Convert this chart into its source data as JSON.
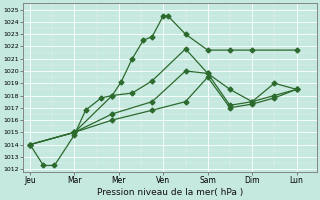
{
  "xlabel": "Pression niveau de la mer( hPa )",
  "background_color": "#c5e8df",
  "grid_color": "#ffffff",
  "line_color": "#2d6a2d",
  "ylim": [
    1012,
    1025.5
  ],
  "y_min": 1012,
  "y_max": 1025,
  "x_labels": [
    "Jeu",
    "Mar",
    "Mer",
    "Ven",
    "Sam",
    "Dim",
    "Lun"
  ],
  "x_positions": [
    0,
    1,
    2,
    3,
    4,
    5,
    6
  ],
  "line1_x": [
    0.0,
    0.3,
    0.55,
    1.0,
    1.25,
    1.6,
    1.85,
    2.05,
    2.3,
    2.55,
    2.75,
    3.0,
    3.1,
    3.5,
    4.0,
    4.5,
    5.0,
    6.0
  ],
  "line1_y": [
    1014.0,
    1012.3,
    1012.3,
    1014.8,
    1016.8,
    1017.8,
    1018.0,
    1019.1,
    1021.0,
    1022.5,
    1022.8,
    1024.5,
    1024.5,
    1023.0,
    1021.7,
    1021.7,
    1021.7,
    1021.7
  ],
  "line2_x": [
    0.0,
    1.0,
    1.85,
    2.3,
    2.75,
    3.5,
    4.0,
    4.5,
    5.0,
    5.5,
    6.0
  ],
  "line2_y": [
    1014.0,
    1015.0,
    1018.0,
    1018.2,
    1019.2,
    1021.8,
    1019.8,
    1017.2,
    1017.5,
    1019.0,
    1018.5
  ],
  "line3_x": [
    0.0,
    1.0,
    1.85,
    2.75,
    3.5,
    4.0,
    4.5,
    5.0,
    5.5,
    6.0
  ],
  "line3_y": [
    1014.0,
    1015.0,
    1016.5,
    1017.5,
    1020.0,
    1019.8,
    1018.5,
    1017.5,
    1018.0,
    1018.5
  ],
  "line4_x": [
    0.0,
    1.0,
    1.85,
    2.75,
    3.5,
    4.0,
    4.5,
    5.0,
    5.5,
    6.0
  ],
  "line4_y": [
    1014.0,
    1015.0,
    1016.0,
    1016.8,
    1017.5,
    1019.5,
    1017.0,
    1017.3,
    1017.8,
    1018.5
  ]
}
